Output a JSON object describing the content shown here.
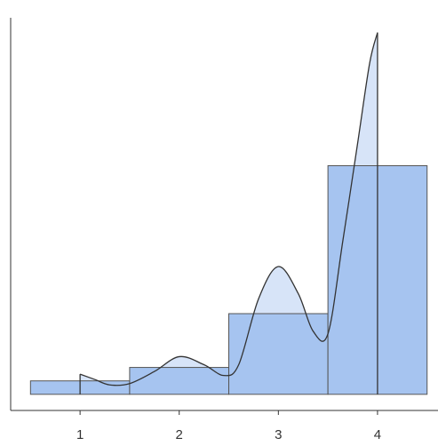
{
  "chart_data": {
    "type": "histogram",
    "bins": [
      0.5,
      1.5,
      2.5,
      3.5,
      4.5
    ],
    "counts": [
      1,
      2,
      6,
      17
    ],
    "color": "#a6c4f0",
    "density": {
      "color": "#d7e4f8",
      "x": [
        1.0,
        1.15,
        1.3,
        1.5,
        1.75,
        2.0,
        2.25,
        2.45,
        2.6,
        2.8,
        3.0,
        3.2,
        3.35,
        3.5,
        3.65,
        3.8,
        3.92,
        4.0
      ],
      "values": [
        1.5,
        1.1,
        0.7,
        0.8,
        1.7,
        2.8,
        2.2,
        1.4,
        2.2,
        7.1,
        9.5,
        7.5,
        4.7,
        4.5,
        11.4,
        18.7,
        24.6,
        26.9
      ]
    },
    "xlim": [
      0.3,
      4.61
    ],
    "ylim": [
      -1.2,
      28
    ],
    "xticks": [
      1,
      2,
      3,
      4
    ]
  }
}
